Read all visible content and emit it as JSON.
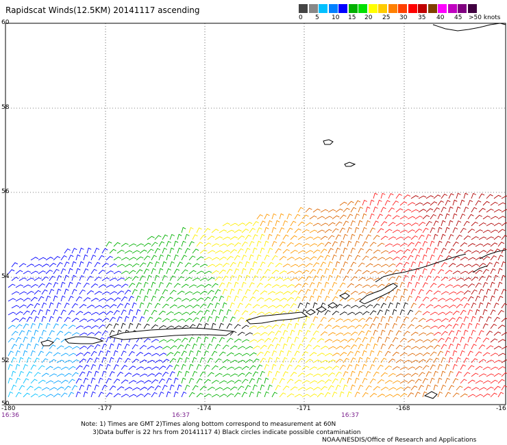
{
  "title": "Rapidscat Winds(12.5KM) 20141117 ascending",
  "colorbar": {
    "colors": [
      "#444444",
      "#888888",
      "#00c0ff",
      "#0080ff",
      "#0000ff",
      "#00b000",
      "#00e000",
      "#ffff00",
      "#ffcc00",
      "#ff8000",
      "#ff4000",
      "#ff0000",
      "#c00000",
      "#804000",
      "#ff00ff",
      "#c000c0",
      "#800080",
      "#400040"
    ],
    "labels": [
      "0",
      "5",
      "10",
      "15",
      "20",
      "25",
      "30",
      "35",
      "40",
      "45",
      ">50 knots"
    ]
  },
  "axes": {
    "lat_labels": [
      "60",
      "58",
      "56",
      "54",
      "52",
      "50"
    ],
    "lon_labels": [
      "-180",
      "-177",
      "-174",
      "-171",
      "-168",
      "-16"
    ],
    "time_labels": [
      "16:36",
      "16:37",
      "16:37"
    ]
  },
  "notes": "Note: 1) Times are GMT 2)Times along bottom correspond to measurement at 60N\n      3)Data buffer is 22 hrs from 20141117 4) Black circles indicate possible contamination",
  "credit": "NOAA/NESDIS/Office of Research and Applications",
  "wind_colors": {
    "cyan": "#00c0ff",
    "lightblue": "#00a0ff",
    "blue": "#0000ff",
    "green": "#00b000",
    "yellow": "#ffee00",
    "orange": "#ff9900",
    "darkorange": "#dd6600",
    "red": "#ff2020",
    "darkred": "#b00000",
    "black": "#000000"
  }
}
